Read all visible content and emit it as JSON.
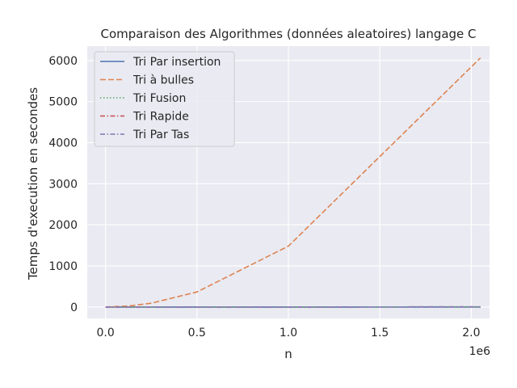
{
  "chart_data": {
    "type": "line",
    "title": "Comparaison des Algorithmes (données aleatoires) langage C",
    "xlabel": "n",
    "ylabel": "Temps d'execution en secondes",
    "x_offset_label": "1e6",
    "xlim": [
      -0.1,
      2.1
    ],
    "ylim": [
      -280,
      6350
    ],
    "x_ticks": [
      0.0,
      0.5,
      1.0,
      1.5,
      2.0
    ],
    "x_tick_labels": [
      "0.0",
      "0.5",
      "1.0",
      "1.5",
      "2.0"
    ],
    "y_ticks": [
      0,
      1000,
      2000,
      3000,
      4000,
      5000,
      6000
    ],
    "y_tick_labels": [
      "0",
      "1000",
      "2000",
      "3000",
      "4000",
      "5000",
      "6000"
    ],
    "grid": true,
    "legend_position": "top-left",
    "background": "#eaeaf2",
    "series": [
      {
        "name": "Tri Par insertion",
        "color": "#4c72b0",
        "dash": "solid",
        "x": [
          0.0,
          0.25,
          0.5,
          1.0,
          2.05
        ],
        "y": [
          0,
          0,
          0,
          0,
          0
        ]
      },
      {
        "name": "Tri à bulles",
        "color": "#dd8452",
        "dash": "dashed",
        "x": [
          0.0,
          0.125,
          0.25,
          0.5,
          1.0,
          2.05
        ],
        "y": [
          0,
          23,
          92,
          365,
          1480,
          6060
        ]
      },
      {
        "name": "Tri Fusion",
        "color": "#55a868",
        "dash": "dotted",
        "x": [
          0.0,
          0.25,
          0.5,
          1.0,
          2.05
        ],
        "y": [
          0,
          0,
          0,
          0,
          1
        ]
      },
      {
        "name": "Tri Rapide",
        "color": "#c44e52",
        "dash": "dashdot",
        "x": [
          0.0,
          0.25,
          0.5,
          1.0,
          2.05
        ],
        "y": [
          0,
          0,
          0,
          0,
          1
        ]
      },
      {
        "name": "Tri Par Tas",
        "color": "#8172b3",
        "dash": "dashdot",
        "x": [
          0.0,
          0.25,
          0.5,
          1.0,
          2.05
        ],
        "y": [
          0,
          0,
          0,
          0,
          1
        ]
      }
    ]
  }
}
